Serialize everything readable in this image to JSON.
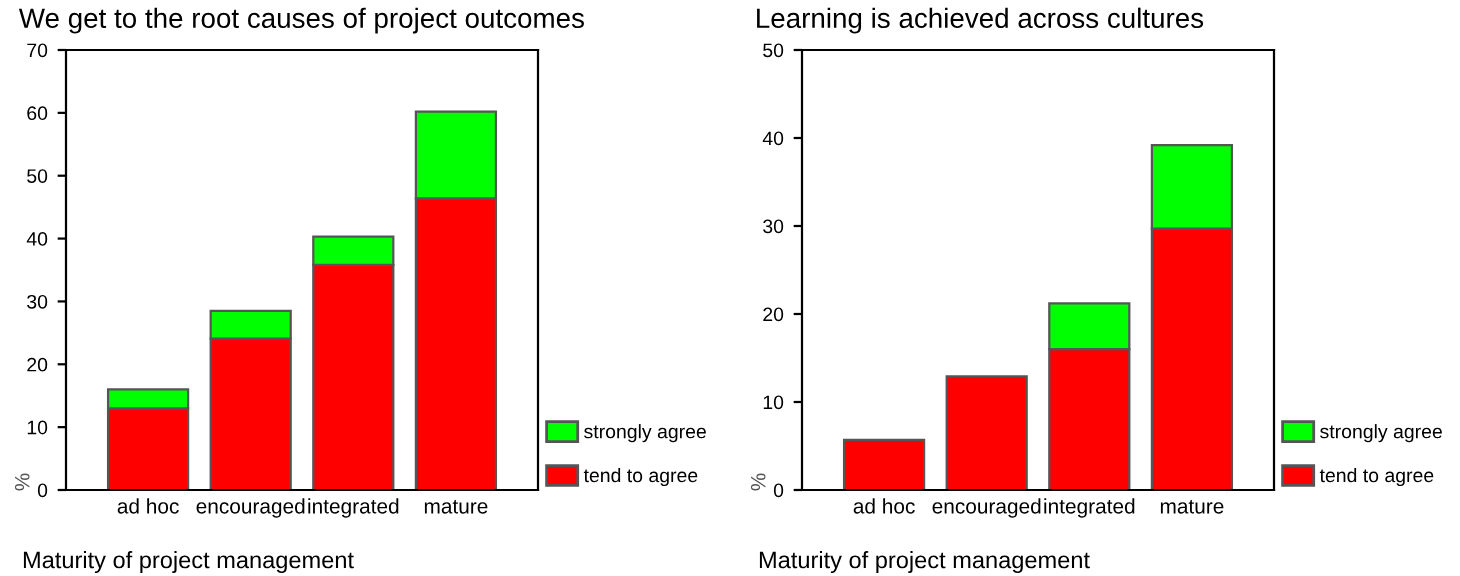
{
  "chart_data": [
    {
      "type": "bar",
      "title": "We get to the root causes of project outcomes",
      "xlabel": "Maturity of project management",
      "ylabel": "%",
      "categories": [
        "ad hoc",
        "encouraged",
        "integrated",
        "mature"
      ],
      "stacked": true,
      "ylim": [
        0,
        70
      ],
      "yticks": [
        0,
        10,
        20,
        30,
        40,
        50,
        60,
        70
      ],
      "grid": false,
      "legend": "bottom right",
      "series": [
        {
          "name": "tend to agree",
          "color": "#ff0000",
          "values": [
            13.0,
            24.1,
            35.8,
            46.4
          ]
        },
        {
          "name": "strongly agree",
          "color": "#00ff00",
          "values": [
            3.0,
            4.4,
            4.5,
            13.8
          ]
        }
      ]
    },
    {
      "type": "bar",
      "title": "Learning is achieved across cultures",
      "xlabel": "Maturity of project management",
      "ylabel": "%",
      "categories": [
        "ad hoc",
        "encouraged",
        "integrated",
        "mature"
      ],
      "stacked": true,
      "ylim": [
        0,
        50
      ],
      "yticks": [
        0,
        10,
        20,
        30,
        40,
        50
      ],
      "grid": false,
      "legend": "bottom right",
      "series": [
        {
          "name": "tend to agree",
          "color": "#ff0000",
          "values": [
            5.7,
            12.9,
            16.0,
            29.7
          ]
        },
        {
          "name": "strongly agree",
          "color": "#00ff00",
          "values": [
            null,
            null,
            5.2,
            9.5
          ]
        }
      ]
    }
  ]
}
